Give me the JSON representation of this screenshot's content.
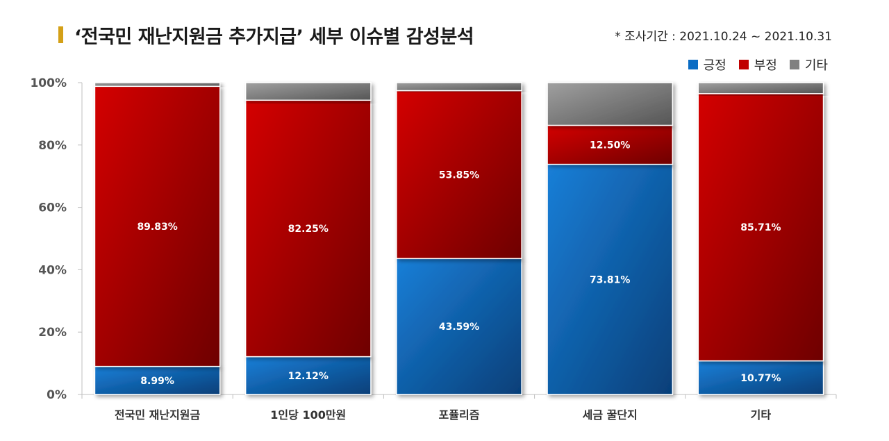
{
  "title": "‘전국민 재난지원금 추가지급’ 세부 이슈별 감성분석",
  "period": "* 조사기간 : 2021.10.24 ~ 2021.10.31",
  "colors": {
    "positive": "#0a6cc4",
    "negative": "#c00000",
    "other": "#808080",
    "title_mark": "#d4a017"
  },
  "chart_data": {
    "type": "bar",
    "stacked": true,
    "title": "‘전국민 재난지원금 추가지급’ 세부 이슈별 감성분석",
    "categories": [
      "전국민 재난지원금",
      "1인당 100만원",
      "포퓰리즘",
      "세금 꿀단지",
      "기타"
    ],
    "series": [
      {
        "name": "긍정",
        "values": [
          8.99,
          12.12,
          43.59,
          73.81,
          10.77
        ],
        "labels": [
          "8.99%",
          "12.12%",
          "43.59%",
          "73.81%",
          "10.77%"
        ]
      },
      {
        "name": "부정",
        "values": [
          89.83,
          82.25,
          53.85,
          12.5,
          85.71
        ],
        "labels": [
          "89.83%",
          "82.25%",
          "53.85%",
          "12.50%",
          "85.71%"
        ]
      },
      {
        "name": "기타",
        "values": [
          1.18,
          5.63,
          2.56,
          13.69,
          3.52
        ],
        "labels": [
          "",
          "",
          "",
          "",
          ""
        ]
      }
    ],
    "ylim": [
      0,
      100
    ],
    "yticks": [
      "0%",
      "20%",
      "40%",
      "60%",
      "80%",
      "100%"
    ],
    "grid": false,
    "legend_position": "top-right"
  }
}
